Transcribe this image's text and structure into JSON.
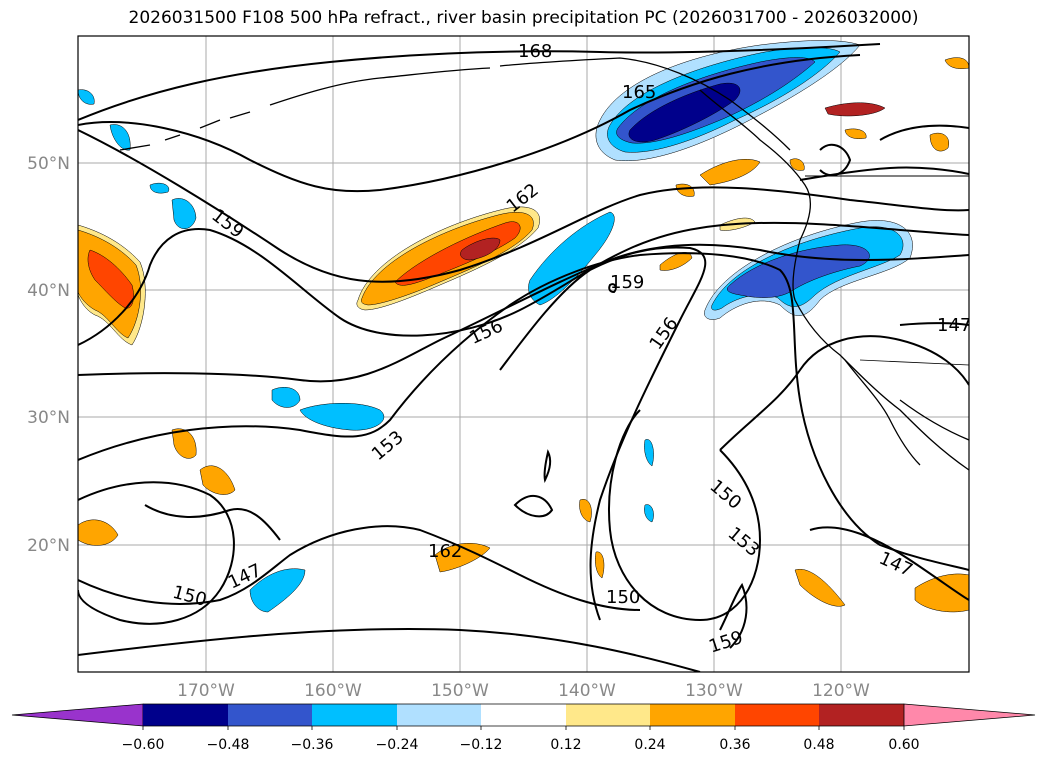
{
  "title": "2026031500 F108 500 hPa refract., river basin precipitation PC (2026031700 - 2026032000)",
  "map": {
    "lat_ticks": [
      "50°N",
      "40°N",
      "30°N",
      "20°N"
    ],
    "lon_ticks": [
      "170°W",
      "160°W",
      "150°W",
      "140°W",
      "130°W",
      "120°W"
    ],
    "extent": {
      "lon": [
        -180,
        -110
      ],
      "lat": [
        10,
        60
      ]
    },
    "gridlines": true,
    "contour_labels": [
      "168",
      "165",
      "162",
      "159",
      "159",
      "156",
      "156",
      "153",
      "153",
      "150",
      "150",
      "150",
      "147",
      "147",
      "147",
      "162",
      "159"
    ],
    "line_color": "#000000"
  },
  "colorbar": {
    "ticks": [
      "−0.60",
      "−0.48",
      "−0.36",
      "−0.24",
      "−0.12",
      "0.12",
      "0.24",
      "0.36",
      "0.48",
      "0.60"
    ],
    "colors": [
      "#9933cc",
      "#00008b",
      "#3355cc",
      "#00bfff",
      "#b0e0ff",
      "#ffffff",
      "#ffe88a",
      "#ffa500",
      "#ff4500",
      "#b22222",
      "#ff88aa"
    ]
  }
}
